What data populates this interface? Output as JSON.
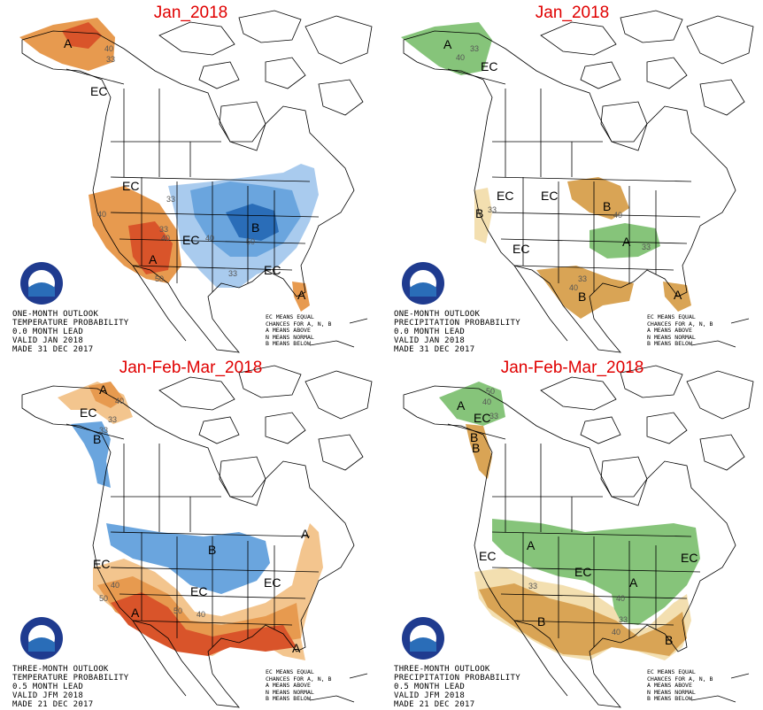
{
  "colors": {
    "above_light": "#f3c58e",
    "above_mid": "#e79a4f",
    "above_dark": "#d9542a",
    "below_light": "#a9cbee",
    "below_mid": "#6aa5de",
    "below_dark": "#2a6db8",
    "wet_light": "#bfe0b4",
    "wet_mid": "#86c47a",
    "dry_light": "#f3dfb0",
    "dry_mid": "#d9a455",
    "title": "#e00000"
  },
  "legend_lines": [
    "EC MEANS EQUAL",
    "CHANCES FOR A, N, B",
    "A MEANS ABOVE",
    "N MEANS NORMAL",
    "B MEANS BELOW"
  ],
  "panels": [
    {
      "title": "Jan_2018",
      "info": [
        "ONE-MONTH OUTLOOK",
        "TEMPERATURE PROBABILITY",
        "0.0 MONTH LEAD",
        "VALID JAN 2018",
        "MADE 31 DEC 2017"
      ]
    },
    {
      "title": "Jan_2018",
      "info": [
        "ONE-MONTH OUTLOOK",
        "PRECIPITATION PROBABILITY",
        "0.0 MONTH LEAD",
        "VALID JAN 2018",
        "MADE 31 DEC 2017"
      ]
    },
    {
      "title": "Jan-Feb-Mar_2018",
      "info": [
        "THREE-MONTH OUTLOOK",
        "TEMPERATURE PROBABILITY",
        "0.5 MONTH LEAD",
        "VALID JFM 2018",
        "MADE 21 DEC 2017"
      ]
    },
    {
      "title": "Jan-Feb-Mar_2018",
      "info": [
        "THREE-MONTH OUTLOOK",
        "PRECIPITATION PROBABILITY",
        "0.5 MONTH LEAD",
        "VALID JFM 2018",
        "MADE 21 DEC 2017"
      ]
    }
  ],
  "map_labels": {
    "p0": [
      "A",
      "40",
      "33",
      "EC",
      "EC",
      "40",
      "33",
      "40",
      "A",
      "EC",
      "50",
      "33",
      "B",
      "40",
      "50",
      "EC",
      "33",
      "A"
    ],
    "p1": [
      "A",
      "40",
      "33",
      "EC",
      "EC",
      "B",
      "33",
      "EC",
      "B",
      "40",
      "EC",
      "A",
      "33",
      "33",
      "40",
      "B",
      "A"
    ],
    "p2": [
      "A",
      "40",
      "EC",
      "33",
      "B",
      "33",
      "B",
      "EC",
      "40",
      "50",
      "A",
      "50",
      "40",
      "EC",
      "EC",
      "A",
      "A"
    ],
    "p3": [
      "A",
      "50",
      "40",
      "EC",
      "33",
      "B",
      "A",
      "EC",
      "33",
      "EC",
      "B",
      "A",
      "40",
      "33",
      "40",
      "B",
      "EC",
      "B"
    ]
  }
}
